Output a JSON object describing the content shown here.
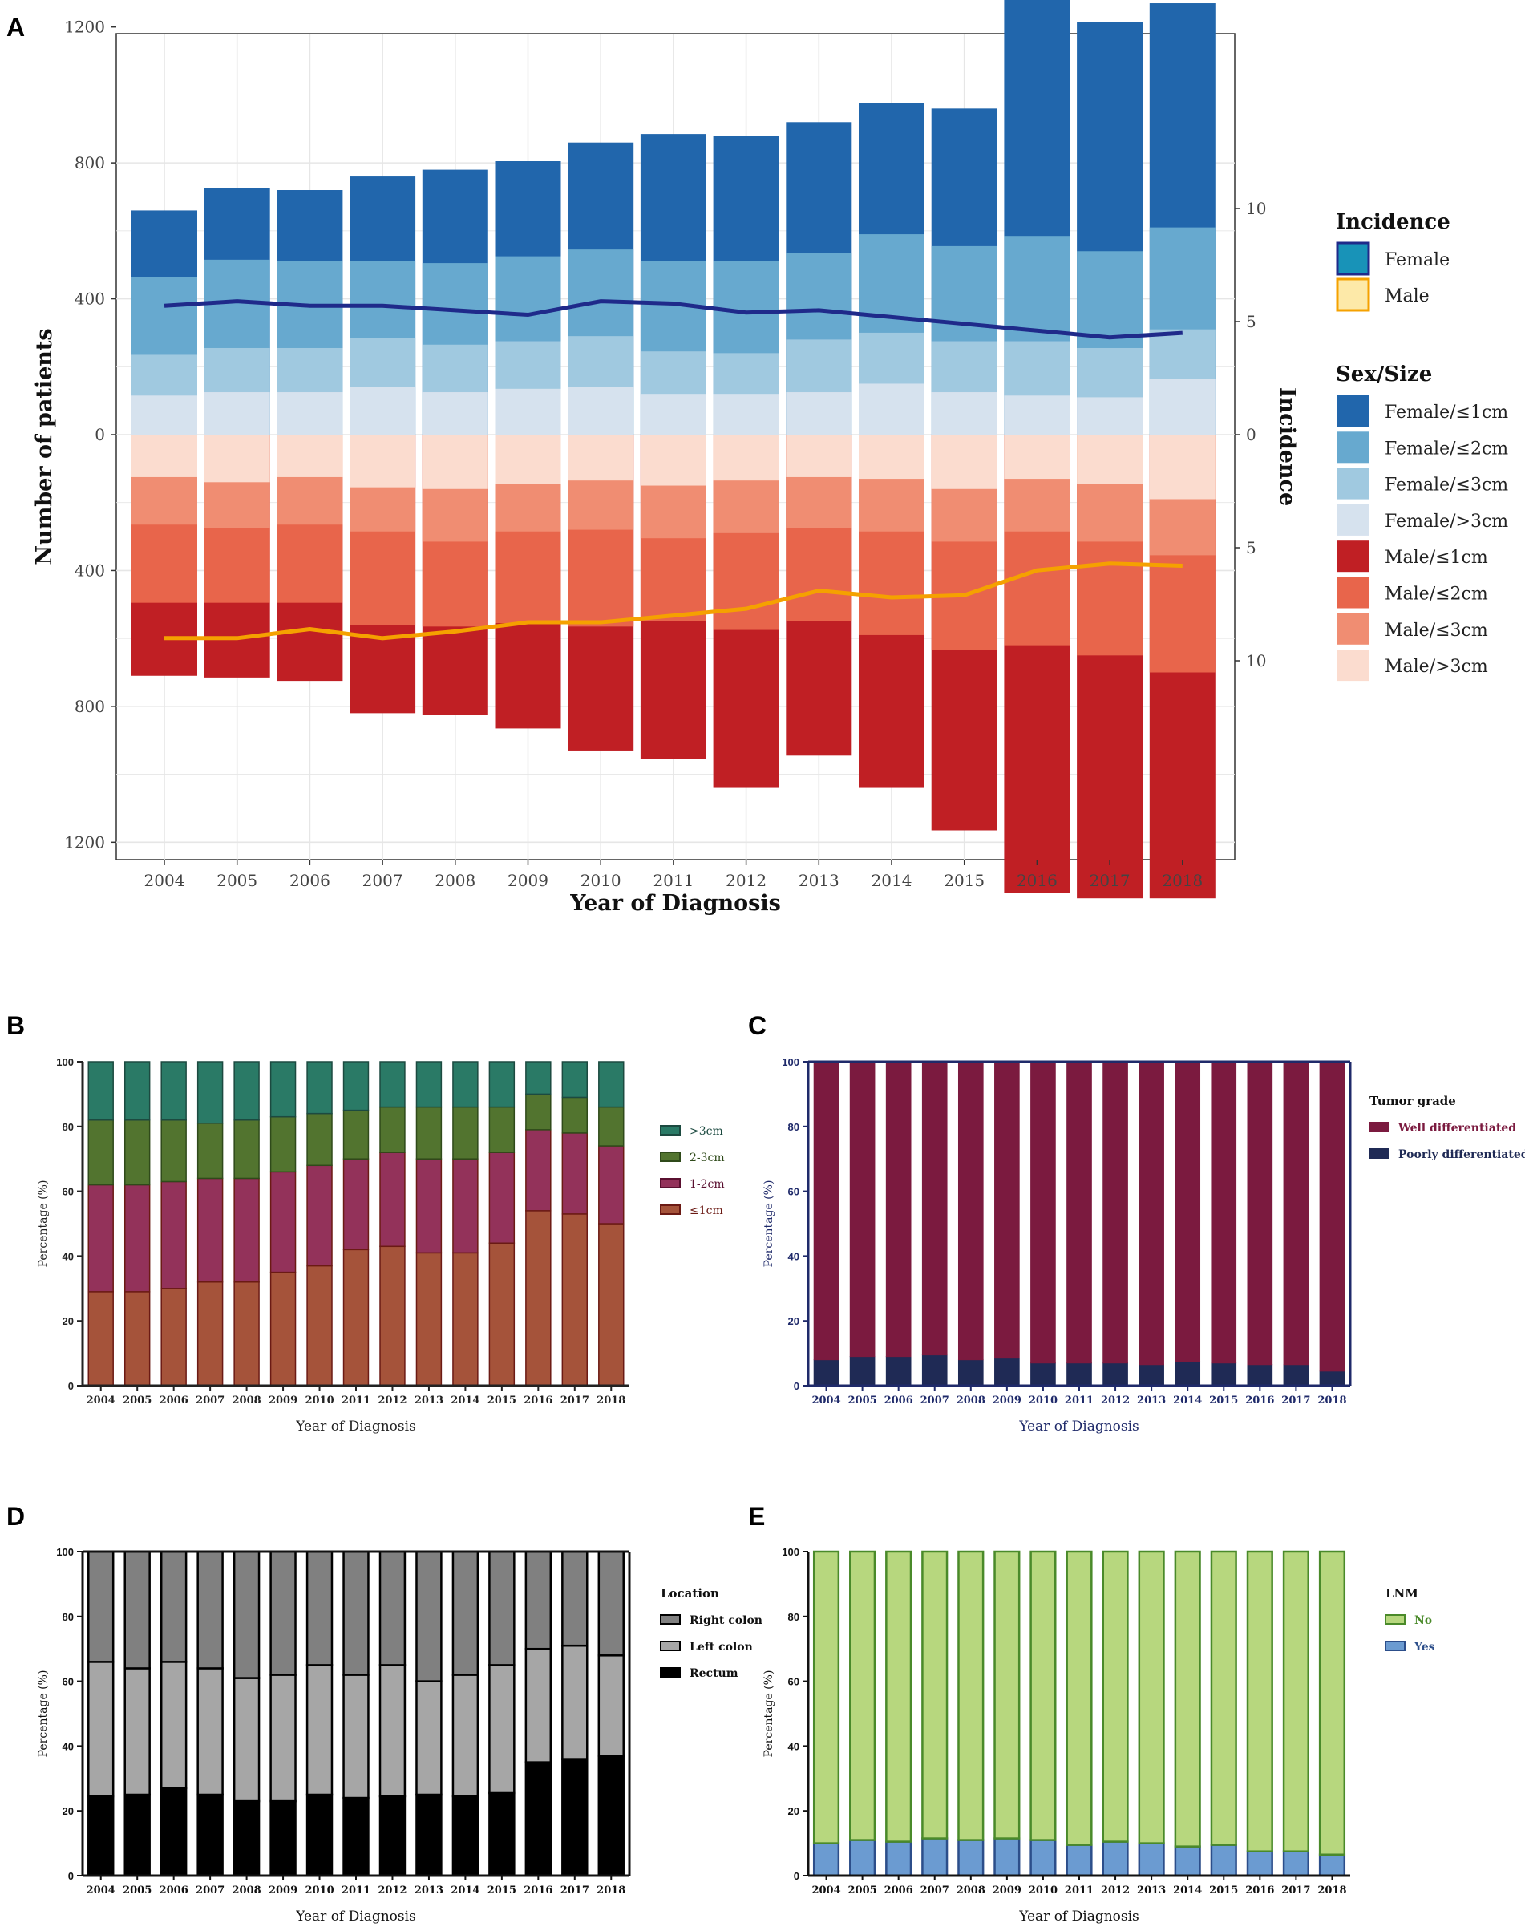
{
  "panel_labels": {
    "a": "A",
    "b": "B",
    "c": "C",
    "d": "D",
    "e": "E"
  },
  "colors": {
    "female_le1": "#2166ac",
    "female_le2": "#67a9cf",
    "female_le3": "#a0c9e0",
    "female_gt3": "#d6e2ee",
    "male_le1": "#c01f24",
    "male_le2": "#e8654b",
    "male_le3": "#f08d72",
    "male_gt3": "#fbdccf",
    "female_line": "#1f2a8a",
    "male_line": "#f5a100",
    "b_gt3": "#2a7a66",
    "b_2_3": "#52742f",
    "b_1_2": "#93325a",
    "b_le1": "#a5533a",
    "b_edge": "#6b1a14",
    "c_well": "#7b1a3f",
    "c_poor": "#1f2a55",
    "d_right": "#808080",
    "d_left": "#a6a6a6",
    "d_rectum": "#000000",
    "e_no": "#b7d77e",
    "e_no_edge": "#4a8a2a",
    "e_yes": "#6b9bd1",
    "e_yes_edge": "#2c4e8a",
    "c_axis_text": "#1f2a6a",
    "text_dark": "#222222"
  },
  "chart_data": [
    {
      "id": "A",
      "type": "bar",
      "stacked": true,
      "diverging": true,
      "categories": [
        "2004",
        "2005",
        "2006",
        "2007",
        "2008",
        "2009",
        "2010",
        "2011",
        "2012",
        "2013",
        "2014",
        "2015",
        "2016",
        "2017",
        "2018"
      ],
      "xlabel": "Year of Diagnosis",
      "ylabel": "Number of patients",
      "y2label": "Incidence",
      "ylim": [
        -1400,
        1400
      ],
      "yticks": [
        -1200,
        -800,
        -400,
        0,
        400,
        800,
        1200
      ],
      "ytick_labels": [
        "1200",
        "800",
        "400",
        "0",
        "400",
        "800",
        "1200"
      ],
      "y2lim": [
        -16.8,
        16.8
      ],
      "y2ticks": [
        -10,
        -5,
        0,
        5,
        10
      ],
      "y2tick_labels": [
        "10",
        "5",
        "0",
        "5",
        "10"
      ],
      "female_cumulative_tops": {
        "gt3cm": [
          115,
          125,
          125,
          140,
          125,
          135,
          140,
          120,
          120,
          125,
          150,
          125,
          115,
          110,
          165
        ],
        "le3cm": [
          235,
          255,
          255,
          285,
          265,
          275,
          290,
          245,
          240,
          280,
          300,
          275,
          275,
          255,
          310
        ],
        "le2cm": [
          465,
          515,
          510,
          510,
          505,
          525,
          545,
          510,
          510,
          535,
          590,
          555,
          585,
          540,
          610
        ],
        "le1cm": [
          660,
          725,
          720,
          760,
          780,
          805,
          860,
          885,
          880,
          920,
          975,
          960,
          1290,
          1215,
          1270
        ]
      },
      "male_cumulative_depths": {
        "gt3cm": [
          125,
          140,
          125,
          155,
          160,
          145,
          135,
          150,
          135,
          125,
          130,
          160,
          130,
          145,
          190
        ],
        "le3cm": [
          265,
          275,
          265,
          285,
          315,
          285,
          280,
          305,
          290,
          275,
          285,
          315,
          285,
          315,
          355
        ],
        "le2cm": [
          495,
          495,
          495,
          560,
          565,
          555,
          565,
          550,
          575,
          550,
          590,
          635,
          620,
          650,
          700
        ],
        "le1cm": [
          710,
          715,
          725,
          820,
          825,
          865,
          930,
          955,
          1040,
          945,
          1040,
          1165,
          1350,
          1365,
          1365
        ]
      },
      "incidence": {
        "female": [
          5.7,
          5.9,
          5.7,
          5.7,
          5.5,
          5.3,
          5.9,
          5.8,
          5.4,
          5.5,
          5.2,
          4.9,
          4.6,
          4.3,
          4.5
        ],
        "male": [
          9.0,
          9.0,
          8.6,
          9.0,
          8.7,
          8.3,
          8.3,
          8.0,
          7.7,
          6.9,
          7.2,
          7.1,
          6.0,
          5.7,
          5.8
        ]
      },
      "legend": {
        "incidence_title": "Incidence",
        "incidence_items": [
          "Female",
          "Male"
        ],
        "size_title": "Sex/Size",
        "size_items": [
          "Female/≤1cm",
          "Female/≤2cm",
          "Female/≤3cm",
          "Female/>3cm",
          "Male/≤1cm",
          "Male/≤2cm",
          "Male/≤3cm",
          "Male/>3cm"
        ],
        "position": "right"
      }
    },
    {
      "id": "B",
      "type": "bar",
      "stacked": true,
      "categories": [
        "2004",
        "2005",
        "2006",
        "2007",
        "2008",
        "2009",
        "2010",
        "2011",
        "2012",
        "2013",
        "2014",
        "2015",
        "2016",
        "2017",
        "2018"
      ],
      "xlabel": "Year of Diagnosis",
      "ylabel": "Percentage (%)",
      "ylim": [
        0,
        100
      ],
      "yticks": [
        0,
        20,
        40,
        60,
        80,
        100
      ],
      "legend_title": "",
      "legend_items": [
        ">3cm",
        "2-3cm",
        "1-2cm",
        "≤1cm"
      ],
      "cumulative": {
        "le1cm": [
          29,
          29,
          30,
          32,
          32,
          35,
          37,
          42,
          43,
          41,
          41,
          44,
          54,
          53,
          50
        ],
        "le2cm": [
          62,
          62,
          63,
          64,
          64,
          66,
          68,
          70,
          72,
          70,
          70,
          72,
          79,
          78,
          74
        ],
        "le3cm": [
          82,
          82,
          82,
          81,
          82,
          83,
          84,
          85,
          86,
          86,
          86,
          86,
          90,
          89,
          86
        ],
        "total": [
          100,
          100,
          100,
          100,
          100,
          100,
          100,
          100,
          100,
          100,
          100,
          100,
          100,
          100,
          100
        ]
      }
    },
    {
      "id": "C",
      "type": "bar",
      "stacked": true,
      "categories": [
        "2004",
        "2005",
        "2006",
        "2007",
        "2008",
        "2009",
        "2010",
        "2011",
        "2012",
        "2013",
        "2014",
        "2015",
        "2016",
        "2017",
        "2018"
      ],
      "xlabel": "Year of Diagnosis",
      "ylabel": "Percentage (%)",
      "ylim": [
        0,
        100
      ],
      "yticks": [
        0,
        20,
        40,
        60,
        80,
        100
      ],
      "legend_title": "Tumor grade",
      "legend_items": [
        "Well differentiated",
        "Poorly differentiated"
      ],
      "poorly": [
        8,
        9,
        9,
        9.5,
        8,
        8.5,
        7,
        7,
        7,
        6.5,
        7.5,
        7,
        6.5,
        6.5,
        4.5
      ]
    },
    {
      "id": "D",
      "type": "bar",
      "stacked": true,
      "categories": [
        "2004",
        "2005",
        "2006",
        "2007",
        "2008",
        "2009",
        "2010",
        "2011",
        "2012",
        "2013",
        "2014",
        "2015",
        "2016",
        "2017",
        "2018"
      ],
      "xlabel": "Year of Diagnosis",
      "ylabel": "Percentage (%)",
      "ylim": [
        0,
        100
      ],
      "yticks": [
        0,
        20,
        40,
        60,
        80,
        100
      ],
      "legend_title": "Location",
      "legend_items": [
        "Right colon",
        "Left colon",
        "Rectum"
      ],
      "rectum": [
        24.5,
        25,
        27,
        25,
        23,
        23,
        25,
        24,
        24.5,
        25,
        24.5,
        25.5,
        35,
        36,
        37
      ],
      "rectum_plus_left": [
        66,
        64,
        66,
        64,
        61,
        62,
        65,
        62,
        65,
        60,
        62,
        65,
        70,
        71,
        68
      ]
    },
    {
      "id": "E",
      "type": "bar",
      "stacked": true,
      "categories": [
        "2004",
        "2005",
        "2006",
        "2007",
        "2008",
        "2009",
        "2010",
        "2011",
        "2012",
        "2013",
        "2014",
        "2015",
        "2016",
        "2017",
        "2018"
      ],
      "xlabel": "Year of Diagnosis",
      "ylabel": "Percentage (%)",
      "ylim": [
        0,
        100
      ],
      "yticks": [
        0,
        20,
        40,
        60,
        80,
        100
      ],
      "legend_title": "LNM",
      "legend_items": [
        "No",
        "Yes"
      ],
      "yes": [
        10,
        11,
        10.5,
        11.5,
        11,
        11.5,
        11,
        9.5,
        10.5,
        10,
        9,
        9.5,
        7.5,
        7.5,
        6.5
      ]
    }
  ]
}
